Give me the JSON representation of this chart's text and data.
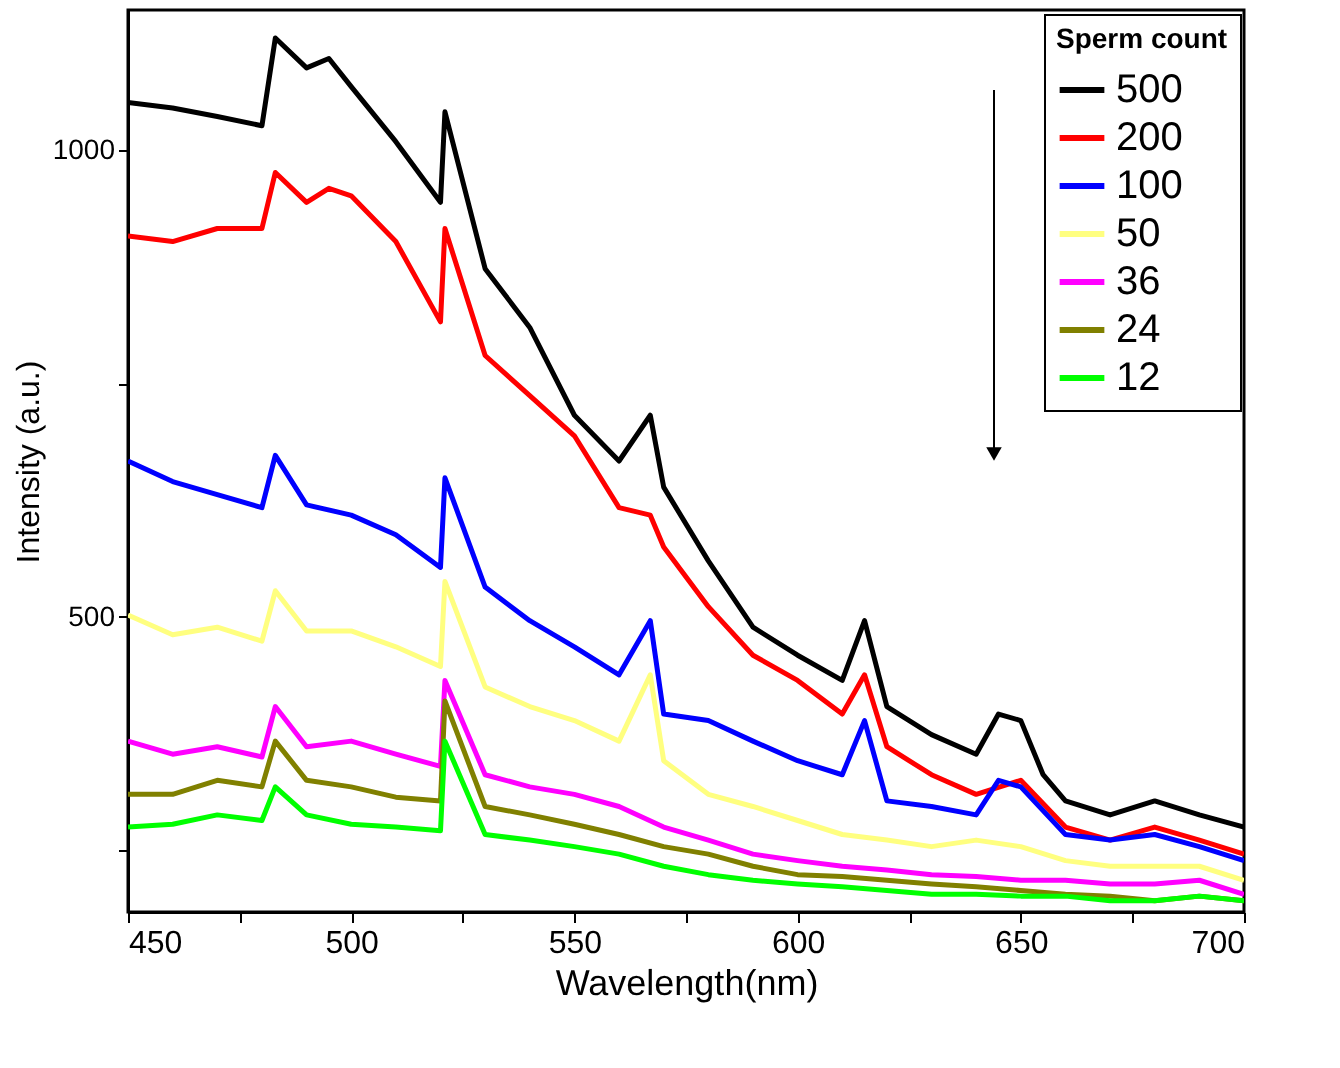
{
  "chart_data": {
    "type": "line",
    "xlabel": "Wavelength(nm)",
    "ylabel": "Intensity (a.u.)",
    "legend_title": "Sperm count",
    "legend": "top right",
    "line_style": "solid",
    "xlim": [
      450,
      700
    ],
    "ylim": [
      184,
      1150
    ],
    "xticks": [
      450,
      {
        "value": 475,
        "label": null
      },
      500,
      {
        "value": 525,
        "label": null
      },
      550,
      {
        "value": 575,
        "label": null
      },
      600,
      {
        "value": 625,
        "label": null
      },
      650,
      {
        "value": 675,
        "label": null
      },
      700
    ],
    "yticks": [
      {
        "value": 250,
        "label": null
      },
      500,
      {
        "value": 750,
        "label": null
      },
      1000
    ],
    "series": [
      {
        "name": "500",
        "color": "#000000",
        "x": [
          450,
          460,
          470,
          480,
          483,
          490,
          495,
          500,
          510,
          520,
          521,
          530,
          540,
          550,
          560,
          567,
          570,
          580,
          590,
          600,
          610,
          615,
          620,
          630,
          640,
          645,
          650,
          655,
          660,
          670,
          680,
          690,
          700
        ],
        "values": [
          1051,
          1045,
          1036,
          1026,
          1120,
          1088,
          1098,
          1068,
          1009,
          944,
          1041,
          873,
          810,
          716,
          667,
          716,
          639,
          560,
          489,
          459,
          432,
          496,
          404,
          374,
          353,
          396,
          389,
          331,
          303,
          288,
          303,
          288,
          275
        ]
      },
      {
        "name": "200",
        "color": "#ff0000",
        "x": [
          450,
          460,
          470,
          480,
          483,
          490,
          495,
          500,
          510,
          520,
          521,
          530,
          540,
          550,
          560,
          567,
          570,
          580,
          590,
          600,
          610,
          615,
          620,
          630,
          640,
          650,
          660,
          670,
          680,
          690,
          700
        ],
        "values": [
          908,
          902,
          916,
          916,
          976,
          944,
          959,
          951,
          902,
          816,
          916,
          780,
          737,
          694,
          617,
          609,
          575,
          511,
          459,
          432,
          396,
          438,
          361,
          331,
          310,
          325,
          275,
          261,
          275,
          261,
          246
        ]
      },
      {
        "name": "100",
        "color": "#0000ff",
        "x": [
          450,
          460,
          470,
          480,
          483,
          490,
          500,
          510,
          520,
          521,
          530,
          540,
          550,
          560,
          567,
          570,
          580,
          590,
          600,
          610,
          615,
          620,
          630,
          640,
          645,
          650,
          660,
          670,
          680,
          690,
          700
        ],
        "values": [
          667,
          645,
          631,
          617,
          673,
          620,
          609,
          588,
          553,
          649,
          532,
          496,
          468,
          438,
          496,
          396,
          389,
          367,
          346,
          331,
          389,
          303,
          297,
          288,
          325,
          318,
          267,
          261,
          267,
          254,
          239
        ]
      },
      {
        "name": "50",
        "color": "#ffff80",
        "x": [
          450,
          460,
          470,
          480,
          483,
          490,
          500,
          510,
          520,
          521,
          530,
          540,
          550,
          560,
          567,
          570,
          580,
          590,
          600,
          610,
          620,
          630,
          640,
          650,
          660,
          670,
          680,
          690,
          700
        ],
        "values": [
          502,
          481,
          489,
          474,
          528,
          485,
          485,
          468,
          447,
          538,
          425,
          404,
          389,
          367,
          438,
          346,
          310,
          297,
          282,
          267,
          261,
          254,
          261,
          254,
          239,
          233,
          233,
          233,
          218
        ]
      },
      {
        "name": "36",
        "color": "#ff00ff",
        "x": [
          450,
          460,
          470,
          480,
          483,
          490,
          500,
          510,
          520,
          521,
          530,
          540,
          550,
          560,
          570,
          580,
          590,
          600,
          610,
          620,
          630,
          640,
          650,
          660,
          670,
          680,
          690,
          700
        ],
        "values": [
          367,
          353,
          361,
          350,
          404,
          361,
          367,
          353,
          340,
          432,
          331,
          318,
          310,
          297,
          275,
          261,
          246,
          239,
          233,
          229,
          224,
          222,
          218,
          218,
          214,
          214,
          218,
          203
        ]
      },
      {
        "name": "24",
        "color": "#808000",
        "x": [
          450,
          460,
          470,
          480,
          483,
          490,
          500,
          510,
          520,
          521,
          530,
          540,
          550,
          560,
          570,
          580,
          590,
          600,
          610,
          620,
          630,
          640,
          650,
          660,
          670,
          680,
          690,
          700
        ],
        "values": [
          310,
          310,
          325,
          318,
          367,
          325,
          318,
          307,
          303,
          410,
          297,
          288,
          278,
          267,
          254,
          246,
          233,
          224,
          222,
          218,
          214,
          211,
          207,
          203,
          201,
          196,
          201,
          196
        ]
      },
      {
        "name": "12",
        "color": "#00ff00",
        "x": [
          450,
          460,
          470,
          480,
          483,
          490,
          500,
          510,
          520,
          521,
          530,
          540,
          550,
          560,
          570,
          580,
          590,
          600,
          610,
          620,
          630,
          640,
          650,
          660,
          670,
          680,
          690,
          700
        ],
        "values": [
          275,
          278,
          288,
          282,
          318,
          288,
          278,
          275,
          271,
          367,
          267,
          261,
          254,
          246,
          233,
          224,
          218,
          214,
          211,
          207,
          203,
          203,
          201,
          201,
          196,
          196,
          201,
          196
        ]
      }
    ]
  }
}
